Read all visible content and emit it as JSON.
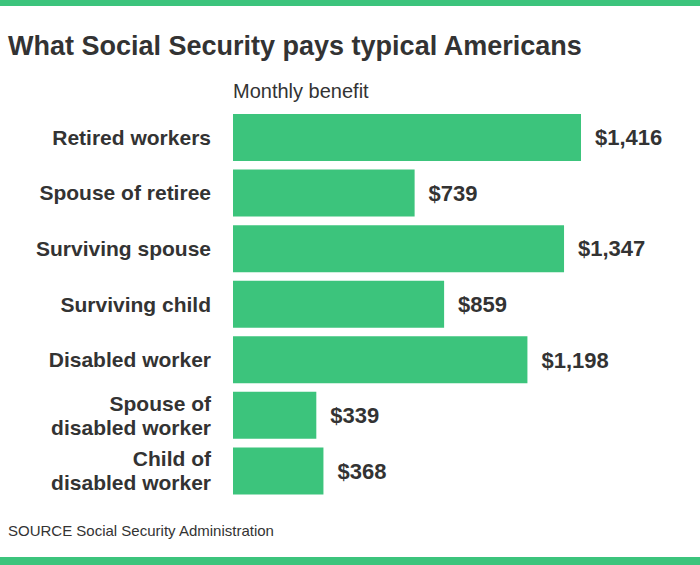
{
  "chart_data": {
    "type": "bar",
    "title": "What Social Security pays typical Americans",
    "subtitle": "Monthly benefit",
    "source": "SOURCE Social Security Administration",
    "orientation": "horizontal",
    "categories": [
      "Retired workers",
      "Spouse of retiree",
      "Surviving spouse",
      "Surviving child",
      "Disabled worker",
      "Spouse of disabled worker",
      "Child of disabled worker"
    ],
    "values": [
      1416,
      739,
      1347,
      859,
      1198,
      339,
      368
    ],
    "value_labels": [
      "$1,416",
      "$739",
      "$1,347",
      "$859",
      "$1,198",
      "$339",
      "$368"
    ],
    "color": "#3cc47c",
    "data_labels": true,
    "tick_labels": "y",
    "grid": false
  }
}
